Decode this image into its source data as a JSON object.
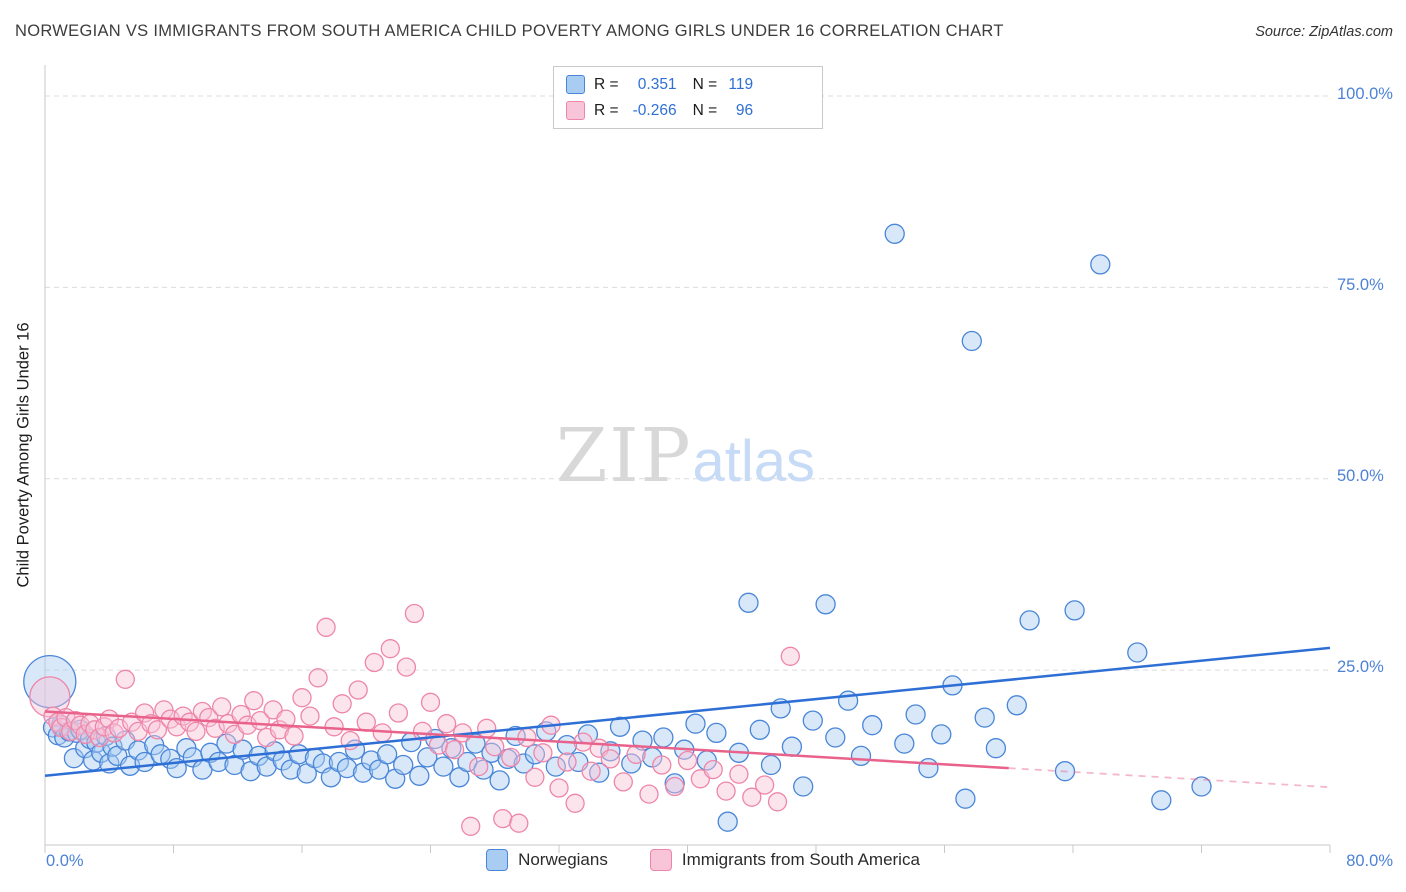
{
  "header": {
    "title": "NORWEGIAN VS IMMIGRANTS FROM SOUTH AMERICA CHILD POVERTY AMONG GIRLS UNDER 16 CORRELATION CHART",
    "source": "Source: ZipAtlas.com"
  },
  "watermark": {
    "zip": "ZIP",
    "atlas": "atlas"
  },
  "colors": {
    "tick_label_blue": "#4d82d6",
    "grid": "#dcdcdc",
    "axis": "#c9c9c9"
  },
  "legend_box": {
    "rows": [
      {
        "r_label": "R =",
        "r_value": "0.351",
        "n_label": "N =",
        "n_value": "119"
      },
      {
        "r_label": "R =",
        "r_value": "-0.266",
        "n_label": "N =",
        "n_value": "96"
      }
    ]
  },
  "chart_data": {
    "type": "scatter",
    "title": "Norwegian vs Immigrants from South America Child Poverty Among Girls Under 16",
    "xlabel": "",
    "ylabel": "Child Poverty Among Girls Under 16",
    "xlim": [
      0,
      80
    ],
    "ylim": [
      0,
      104
    ],
    "grid": true,
    "yticks": [
      25,
      50,
      75,
      100
    ],
    "ytick_labels": [
      "100.0%",
      "75.0%",
      "50.0%",
      "25.0%"
    ],
    "xtick_labels": [
      "0.0%",
      "80.0%"
    ],
    "legend_position": "bottom-center",
    "series": [
      {
        "name": "Norwegians",
        "R": 0.351,
        "N": 119,
        "fill": "#a9ccf2",
        "stroke": "#4a86d8",
        "line_color": "#2e6fd6",
        "marker_radius": 9.5,
        "trend": {
          "x1": 0,
          "y1": 11.2,
          "x2": 80,
          "y2": 27.9
        },
        "points": [
          [
            0.3,
            23.5,
            26
          ],
          [
            0.5,
            17.5
          ],
          [
            0.8,
            16.5
          ],
          [
            1,
            17.8
          ],
          [
            1.2,
            16.2
          ],
          [
            1.5,
            17
          ],
          [
            1.8,
            13.5
          ],
          [
            2,
            16.8
          ],
          [
            2.2,
            17.2
          ],
          [
            2.5,
            14.8
          ],
          [
            2.8,
            16
          ],
          [
            3,
            13.2
          ],
          [
            3.2,
            15.5
          ],
          [
            3.5,
            14.2
          ],
          [
            3.8,
            16.4
          ],
          [
            4,
            12.8
          ],
          [
            4.2,
            15
          ],
          [
            4.5,
            13.8
          ],
          [
            5,
            15.8
          ],
          [
            5.3,
            12.5
          ],
          [
            5.8,
            14.5
          ],
          [
            6.2,
            13
          ],
          [
            6.8,
            15.2
          ],
          [
            7.2,
            14
          ],
          [
            7.8,
            13.4
          ],
          [
            8.2,
            12.2
          ],
          [
            8.8,
            14.8
          ],
          [
            9.2,
            13.6
          ],
          [
            9.8,
            12
          ],
          [
            10.3,
            14.2
          ],
          [
            10.8,
            13
          ],
          [
            11.3,
            15.4
          ],
          [
            11.8,
            12.6
          ],
          [
            12.3,
            14.6
          ],
          [
            12.8,
            11.8
          ],
          [
            13.3,
            13.8
          ],
          [
            13.8,
            12.4
          ],
          [
            14.3,
            14.4
          ],
          [
            14.8,
            13.2
          ],
          [
            15.3,
            12
          ],
          [
            15.8,
            14
          ],
          [
            16.3,
            11.5
          ],
          [
            16.8,
            13.5
          ],
          [
            17.3,
            12.8
          ],
          [
            17.8,
            11
          ],
          [
            18.3,
            13
          ],
          [
            18.8,
            12.2
          ],
          [
            19.3,
            14.6
          ],
          [
            19.8,
            11.6
          ],
          [
            20.3,
            13.2
          ],
          [
            20.8,
            12
          ],
          [
            21.3,
            14
          ],
          [
            21.8,
            10.8
          ],
          [
            22.3,
            12.6
          ],
          [
            22.8,
            15.6
          ],
          [
            23.3,
            11.2
          ],
          [
            23.8,
            13.6
          ],
          [
            24.3,
            16
          ],
          [
            24.8,
            12.4
          ],
          [
            25.3,
            14.8
          ],
          [
            25.8,
            11
          ],
          [
            26.3,
            13
          ],
          [
            26.8,
            15.4
          ],
          [
            27.3,
            12
          ],
          [
            27.8,
            14.2
          ],
          [
            28.3,
            10.6
          ],
          [
            28.8,
            13.4
          ],
          [
            29.3,
            16.4
          ],
          [
            29.8,
            12.8
          ],
          [
            30.5,
            14
          ],
          [
            31.2,
            17
          ],
          [
            31.8,
            12.4
          ],
          [
            32.5,
            15.2
          ],
          [
            33.2,
            13
          ],
          [
            33.8,
            16.6
          ],
          [
            34.5,
            11.6
          ],
          [
            35.2,
            14.4
          ],
          [
            35.8,
            17.6
          ],
          [
            36.5,
            12.8
          ],
          [
            37.2,
            15.8
          ],
          [
            37.8,
            13.6
          ],
          [
            38.5,
            16.2
          ],
          [
            39.2,
            10.2
          ],
          [
            39.8,
            14.6
          ],
          [
            40.5,
            18
          ],
          [
            41.2,
            13.2
          ],
          [
            41.8,
            16.8
          ],
          [
            42.5,
            5.2
          ],
          [
            43.2,
            14.2
          ],
          [
            43.8,
            33.8
          ],
          [
            44.5,
            17.2
          ],
          [
            45.2,
            12.6
          ],
          [
            45.8,
            20
          ],
          [
            46.5,
            15
          ],
          [
            47.2,
            9.8
          ],
          [
            47.8,
            18.4
          ],
          [
            48.6,
            33.6
          ],
          [
            49.2,
            16.2
          ],
          [
            50,
            21
          ],
          [
            50.8,
            13.8
          ],
          [
            51.5,
            17.8
          ],
          [
            52.9,
            82
          ],
          [
            53.5,
            15.4
          ],
          [
            54.2,
            19.2
          ],
          [
            55,
            12.2
          ],
          [
            55.8,
            16.6
          ],
          [
            56.5,
            23
          ],
          [
            57.3,
            8.2
          ],
          [
            57.7,
            68
          ],
          [
            58.5,
            18.8
          ],
          [
            59.2,
            14.8
          ],
          [
            60.5,
            20.4
          ],
          [
            61.3,
            31.5
          ],
          [
            63.5,
            11.8
          ],
          [
            64.1,
            32.8
          ],
          [
            65.7,
            78
          ],
          [
            68,
            27.3
          ],
          [
            69.5,
            8
          ],
          [
            72,
            9.8
          ]
        ]
      },
      {
        "name": "Immigrants from South America",
        "R": -0.266,
        "N": 96,
        "fill": "#f8c4d8",
        "stroke": "#ee86a9",
        "line_color": "#e9628b",
        "marker_radius": 9,
        "trend": {
          "x1": 0,
          "y1": 19.6,
          "x2": 60,
          "y2": 12.2
        },
        "trend_dashed": {
          "x1": 60,
          "y1": 12.2,
          "x2": 80,
          "y2": 9.7
        },
        "points": [
          [
            0.3,
            21.5,
            20
          ],
          [
            0.5,
            19
          ],
          [
            0.8,
            18.2
          ],
          [
            1,
            17.5
          ],
          [
            1.3,
            18.8
          ],
          [
            1.6,
            17
          ],
          [
            1.9,
            18.4
          ],
          [
            2.2,
            17.8
          ],
          [
            2.5,
            16.6
          ],
          [
            2.8,
            18
          ],
          [
            3.1,
            17.2
          ],
          [
            3.4,
            16.2
          ],
          [
            3.7,
            17.6
          ],
          [
            4,
            18.6
          ],
          [
            4.3,
            16.8
          ],
          [
            4.6,
            17.4
          ],
          [
            5,
            23.8
          ],
          [
            5.4,
            18.2
          ],
          [
            5.8,
            17
          ],
          [
            6.2,
            19.4
          ],
          [
            6.6,
            18
          ],
          [
            7,
            17.2
          ],
          [
            7.4,
            19.8
          ],
          [
            7.8,
            18.6
          ],
          [
            8.2,
            17.6
          ],
          [
            8.6,
            19
          ],
          [
            9,
            18.2
          ],
          [
            9.4,
            17
          ],
          [
            9.8,
            19.6
          ],
          [
            10.2,
            18.8
          ],
          [
            10.6,
            17.4
          ],
          [
            11,
            20.2
          ],
          [
            11.4,
            18
          ],
          [
            11.8,
            16.6
          ],
          [
            12.2,
            19.2
          ],
          [
            12.6,
            17.8
          ],
          [
            13,
            21
          ],
          [
            13.4,
            18.4
          ],
          [
            13.8,
            16.2
          ],
          [
            14.2,
            19.8
          ],
          [
            14.6,
            17.2
          ],
          [
            15,
            18.6
          ],
          [
            15.5,
            16.4
          ],
          [
            16,
            21.4
          ],
          [
            16.5,
            19
          ],
          [
            17,
            24
          ],
          [
            17.5,
            30.6
          ],
          [
            18,
            17.6
          ],
          [
            18.5,
            20.6
          ],
          [
            19,
            15.8
          ],
          [
            19.5,
            22.4
          ],
          [
            20,
            18.2
          ],
          [
            20.5,
            26
          ],
          [
            21,
            16.8
          ],
          [
            21.5,
            27.8
          ],
          [
            22,
            19.4
          ],
          [
            22.5,
            25.4
          ],
          [
            23,
            32.4
          ],
          [
            23.5,
            17
          ],
          [
            24,
            20.8
          ],
          [
            24.5,
            15.2
          ],
          [
            25,
            18
          ],
          [
            25.5,
            14.6
          ],
          [
            26,
            16.8
          ],
          [
            26.5,
            4.6
          ],
          [
            27,
            12.4
          ],
          [
            27.5,
            17.4
          ],
          [
            28,
            15
          ],
          [
            28.5,
            5.6
          ],
          [
            29,
            13.6
          ],
          [
            29.5,
            5
          ],
          [
            30,
            16.2
          ],
          [
            30.5,
            11
          ],
          [
            31,
            14.2
          ],
          [
            31.5,
            17.8
          ],
          [
            32,
            9.6
          ],
          [
            32.5,
            13
          ],
          [
            33,
            7.6
          ],
          [
            33.5,
            15.6
          ],
          [
            34,
            11.8
          ],
          [
            34.5,
            14.8
          ],
          [
            35.2,
            13.4
          ],
          [
            36,
            10.4
          ],
          [
            36.8,
            14
          ],
          [
            37.6,
            8.8
          ],
          [
            38.4,
            12.6
          ],
          [
            39.2,
            9.8
          ],
          [
            40,
            13.2
          ],
          [
            40.8,
            10.8
          ],
          [
            41.6,
            12
          ],
          [
            42.4,
            9.2
          ],
          [
            43.2,
            11.4
          ],
          [
            44,
            8.4
          ],
          [
            44.8,
            10
          ],
          [
            45.6,
            7.8
          ],
          [
            46.4,
            26.8
          ]
        ]
      }
    ]
  }
}
